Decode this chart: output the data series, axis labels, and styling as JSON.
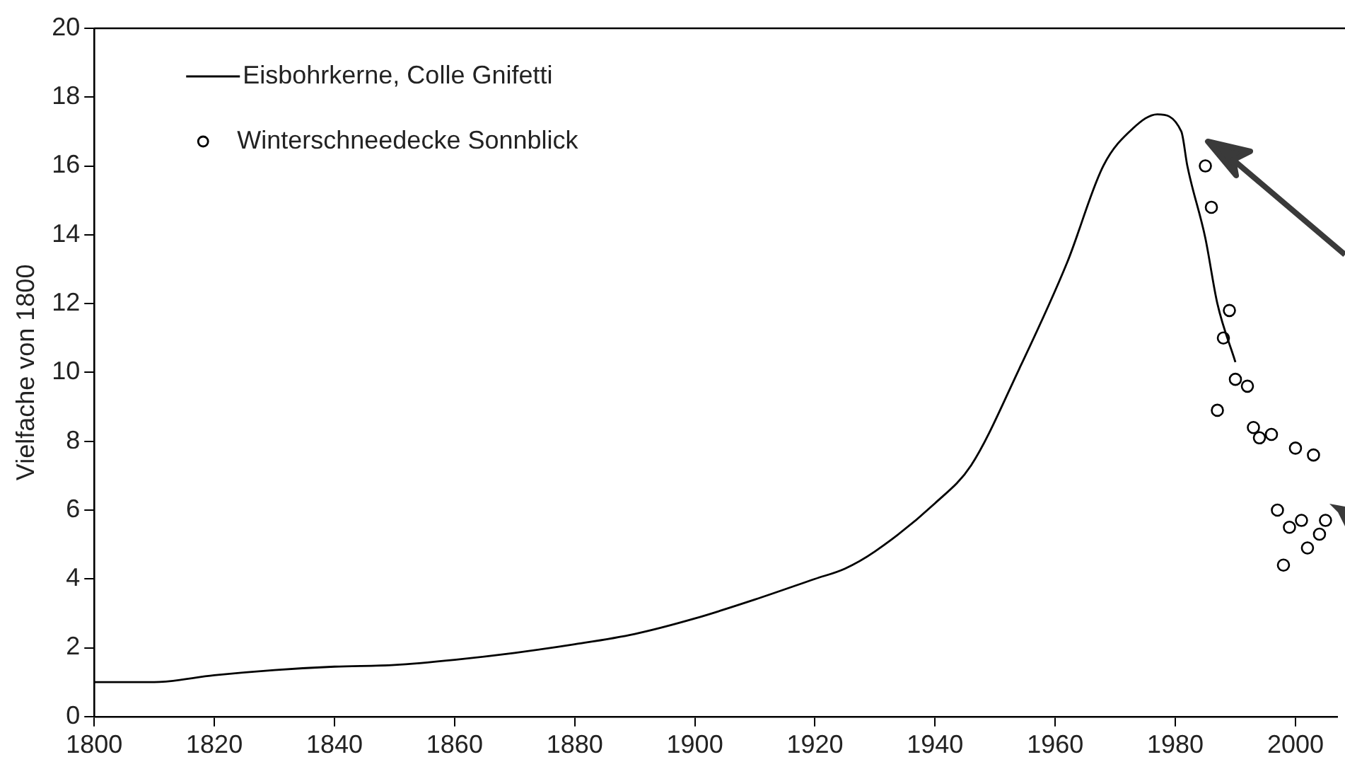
{
  "chart_data": {
    "type": "line",
    "ylabel": "Vielfache von 1800",
    "xlim": [
      1800,
      2007
    ],
    "xticks": [
      1800,
      1820,
      1840,
      1860,
      1880,
      1900,
      1920,
      1940,
      1960,
      1980,
      2000
    ],
    "ylim": [
      0,
      20
    ],
    "yticks": [
      0,
      2,
      4,
      6,
      8,
      10,
      12,
      14,
      16,
      18,
      20
    ],
    "grid": false,
    "legend": "top left",
    "series": [
      {
        "name": "Eisbohrkerne, Colle Gnifetti",
        "color": "#000000",
        "marker": "none",
        "x": [
          1800,
          1810,
          1820,
          1830,
          1840,
          1850,
          1860,
          1870,
          1880,
          1890,
          1900,
          1910,
          1920,
          1925,
          1930,
          1940,
          1946,
          1954,
          1962,
          1968,
          1973,
          1977,
          1981,
          1982,
          1985,
          1987,
          1990
        ],
        "values": [
          1.0,
          1.0,
          1.2,
          1.35,
          1.45,
          1.5,
          1.65,
          1.85,
          2.1,
          2.4,
          2.85,
          3.4,
          4.0,
          4.3,
          4.8,
          6.2,
          7.3,
          10.1,
          13.2,
          16.0,
          17.1,
          17.5,
          17.0,
          16.0,
          13.9,
          12.0,
          10.3
        ]
      },
      {
        "name": "Winterschneedecke Sonnblick",
        "color": "#000000",
        "type": "scatter",
        "marker": "circle",
        "x": [
          1985,
          1986,
          1989,
          1988,
          1990,
          1992,
          1987,
          1993,
          1994,
          1996,
          2000,
          2003,
          1997,
          1999,
          2001,
          2005,
          2004,
          2002,
          1998
        ],
        "values": [
          16.0,
          14.8,
          11.8,
          11.0,
          9.8,
          9.6,
          8.9,
          8.4,
          8.1,
          8.2,
          7.8,
          7.6,
          6.0,
          5.5,
          5.7,
          5.7,
          5.3,
          4.9,
          4.4
        ]
      }
    ]
  }
}
